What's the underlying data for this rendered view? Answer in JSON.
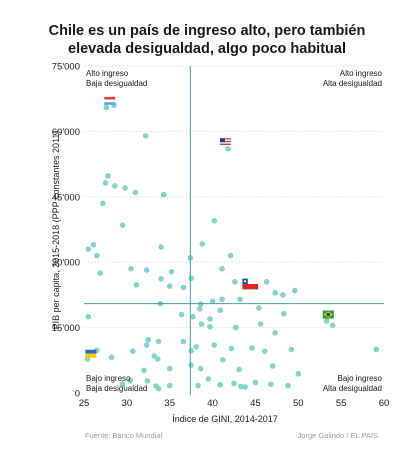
{
  "chart_data": {
    "type": "scatter",
    "title_lines": [
      "Chile es un país de ingreso alto, pero también",
      "elevada desigualdad, algo poco habitual"
    ],
    "xlabel": "Índice de GINI, 2014-2017",
    "ylabel": "PIB per capita, 2015-2018 (PPP constantes 2011)",
    "xlim": [
      25,
      60
    ],
    "ylim": [
      0,
      75000
    ],
    "xticks": [
      25,
      30,
      35,
      40,
      45,
      50,
      55,
      60
    ],
    "yticks": [
      0,
      15000,
      30000,
      45000,
      60000,
      75000
    ],
    "ytick_labels": [
      "0",
      "15'000",
      "30'000",
      "45'000",
      "60'000",
      "75'000"
    ],
    "reference_lines": {
      "x": 37.4,
      "y": 20500
    },
    "quadrant_labels": [
      {
        "lines": [
          "Alto ingreso",
          "Baja desigualdad"
        ],
        "corner": "top-left"
      },
      {
        "lines": [
          "Alto ingreso",
          "Alta desigualdad"
        ],
        "corner": "top-right"
      },
      {
        "lines": [
          "Bajo ingreso",
          "Baja desigualdad"
        ],
        "corner": "bottom-left"
      },
      {
        "lines": [
          "Bajo ingreso",
          "Alta desigualdad"
        ],
        "corner": "bottom-right"
      }
    ],
    "flags": [
      {
        "flag": "luxembourg-flag",
        "x": 28.0,
        "y": 67000
      },
      {
        "flag": "usa-flag",
        "x": 41.5,
        "y": 57500
      },
      {
        "flag": "chile-flag",
        "x": 44.4,
        "y": 25000
      },
      {
        "flag": "brazil-flag",
        "x": 53.5,
        "y": 18000
      },
      {
        "flag": "ukraine-flag",
        "x": 25.8,
        "y": 9000
      }
    ],
    "points": [
      [
        27.6,
        65500
      ],
      [
        28.5,
        66000
      ],
      [
        41.8,
        56000
      ],
      [
        32.2,
        59000
      ],
      [
        27.5,
        48200
      ],
      [
        27.8,
        49800
      ],
      [
        28.6,
        47500
      ],
      [
        29.8,
        47000
      ],
      [
        31.0,
        46000
      ],
      [
        27.2,
        43500
      ],
      [
        34.3,
        45500
      ],
      [
        29.5,
        38500
      ],
      [
        40.2,
        39500
      ],
      [
        25.5,
        33000
      ],
      [
        26.1,
        34000
      ],
      [
        34.0,
        33500
      ],
      [
        38.8,
        34200
      ],
      [
        42.1,
        31500
      ],
      [
        26.5,
        31500
      ],
      [
        37.4,
        31000
      ],
      [
        30.5,
        28500
      ],
      [
        32.3,
        28200
      ],
      [
        35.2,
        27800
      ],
      [
        26.9,
        27500
      ],
      [
        41.1,
        28500
      ],
      [
        37.5,
        26300
      ],
      [
        34.0,
        26200
      ],
      [
        31.1,
        24800
      ],
      [
        35.0,
        24500
      ],
      [
        36.6,
        24200
      ],
      [
        42.6,
        25500
      ],
      [
        46.3,
        25500
      ],
      [
        49.6,
        23500
      ],
      [
        48.2,
        22500
      ],
      [
        47.3,
        23000
      ],
      [
        40.0,
        21000
      ],
      [
        33.9,
        20500
      ],
      [
        38.6,
        20400
      ],
      [
        41.1,
        21500
      ],
      [
        43.2,
        21500
      ],
      [
        45.4,
        19500
      ],
      [
        38.5,
        19300
      ],
      [
        40.9,
        19000
      ],
      [
        36.4,
        18000
      ],
      [
        37.7,
        17500
      ],
      [
        39.7,
        17000
      ],
      [
        25.5,
        17500
      ],
      [
        48.3,
        18200
      ],
      [
        39.7,
        15200
      ],
      [
        38.7,
        15800
      ],
      [
        42.7,
        15000
      ],
      [
        45.6,
        15800
      ],
      [
        54.0,
        15500
      ],
      [
        53.3,
        16500
      ],
      [
        47.3,
        13800
      ],
      [
        32.5,
        12200
      ],
      [
        36.6,
        11800
      ],
      [
        40.2,
        11000
      ],
      [
        33.7,
        11800
      ],
      [
        32.3,
        11000
      ],
      [
        30.7,
        9600
      ],
      [
        26.5,
        9800
      ],
      [
        37.5,
        9700
      ],
      [
        38.1,
        10600
      ],
      [
        42.2,
        10200
      ],
      [
        44.6,
        10300
      ],
      [
        46.1,
        9600
      ],
      [
        49.2,
        10000
      ],
      [
        59.1,
        10000
      ],
      [
        33.2,
        8500
      ],
      [
        33.6,
        7800
      ],
      [
        41.2,
        7600
      ],
      [
        25.4,
        7800
      ],
      [
        28.2,
        8200
      ],
      [
        37.5,
        6400
      ],
      [
        38.6,
        5600
      ],
      [
        47.0,
        6200
      ],
      [
        32.0,
        5200
      ],
      [
        35.0,
        5600
      ],
      [
        43.1,
        5400
      ],
      [
        50.0,
        4400
      ],
      [
        39.5,
        3200
      ],
      [
        30.4,
        2900
      ],
      [
        32.4,
        2800
      ],
      [
        42.5,
        2200
      ],
      [
        45.0,
        2400
      ],
      [
        43.3,
        1500
      ],
      [
        43.8,
        1400
      ],
      [
        46.8,
        2000
      ],
      [
        29.5,
        2000
      ],
      [
        33.4,
        1600
      ],
      [
        35.0,
        1700
      ],
      [
        38.3,
        1700
      ],
      [
        40.9,
        1900
      ],
      [
        33.7,
        1000
      ],
      [
        48.8,
        1700
      ]
    ]
  },
  "footer": {
    "source": "Fuente: Banco Mundial",
    "credit": "Jorge Galindo / EL PAIS"
  }
}
